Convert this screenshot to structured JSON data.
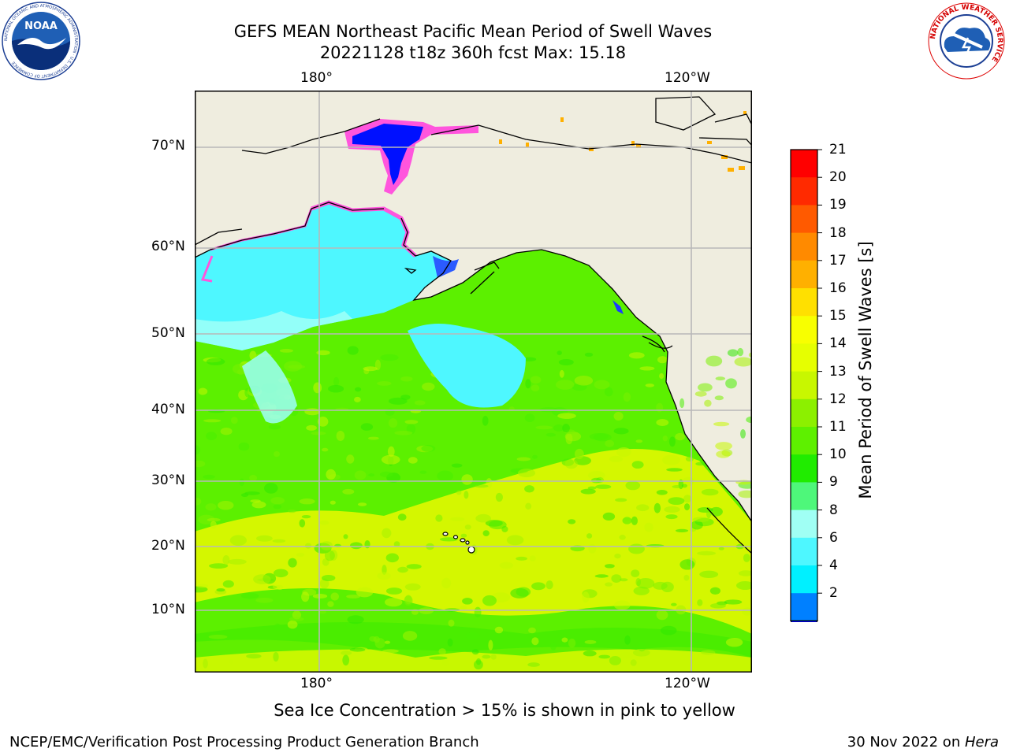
{
  "header": {
    "title_line1": "GEFS MEAN Northeast Pacific Mean Period of Swell Waves",
    "title_line2": "20221128 t18z 360h fcst   Max: 15.18"
  },
  "logos": {
    "left": {
      "name": "NOAA",
      "ring_text": "NATIONAL OCEANIC AND ATMOSPHERIC ADMINISTRATION · U.S. DEPARTMENT OF COMMERCE"
    },
    "right": {
      "name": "NATIONAL WEATHER SERVICE"
    }
  },
  "map": {
    "lon_labels_top": [
      "180°",
      "120°W"
    ],
    "lon_labels_bottom": [
      "180°",
      "120°W"
    ],
    "lat_labels": [
      "70°N",
      "60°N",
      "50°N",
      "40°N",
      "30°N",
      "20°N",
      "10°N"
    ],
    "colors": {
      "land": "#efeddf",
      "ocean_green": "#5cf000",
      "ocean_yellow": "#d4f700",
      "ocean_cyan": "#4ef7ff",
      "ocean_pale": "#9bfff8",
      "ice_pink": "#ff55dd",
      "ice_blue": "#0010ff",
      "grid": "#b8b8b8"
    }
  },
  "colorbar": {
    "label": "Mean Period of Swell Waves [s]",
    "ticks": [
      "21",
      "20",
      "19",
      "18",
      "17",
      "16",
      "15",
      "14",
      "13",
      "12",
      "11",
      "10",
      "9",
      "8",
      "6",
      "4",
      "2"
    ],
    "colors": [
      "#ff0000",
      "#ff2a00",
      "#ff5a00",
      "#ff8a00",
      "#ffb000",
      "#ffe000",
      "#f8ff00",
      "#e6ff00",
      "#c8f700",
      "#8cf000",
      "#5ef000",
      "#20ec00",
      "#4ef77a",
      "#a0fff4",
      "#4ef7ff",
      "#00f0ff",
      "#0080ff"
    ],
    "extend_color": "#0000ff"
  },
  "caption": "Sea Ice Concentration > 15% is shown in pink to yellow",
  "footer": {
    "left": "NCEP/EMC/Verification Post Processing Product Generation Branch",
    "right_date": "30 Nov 2022 on ",
    "right_host": "Hera"
  }
}
